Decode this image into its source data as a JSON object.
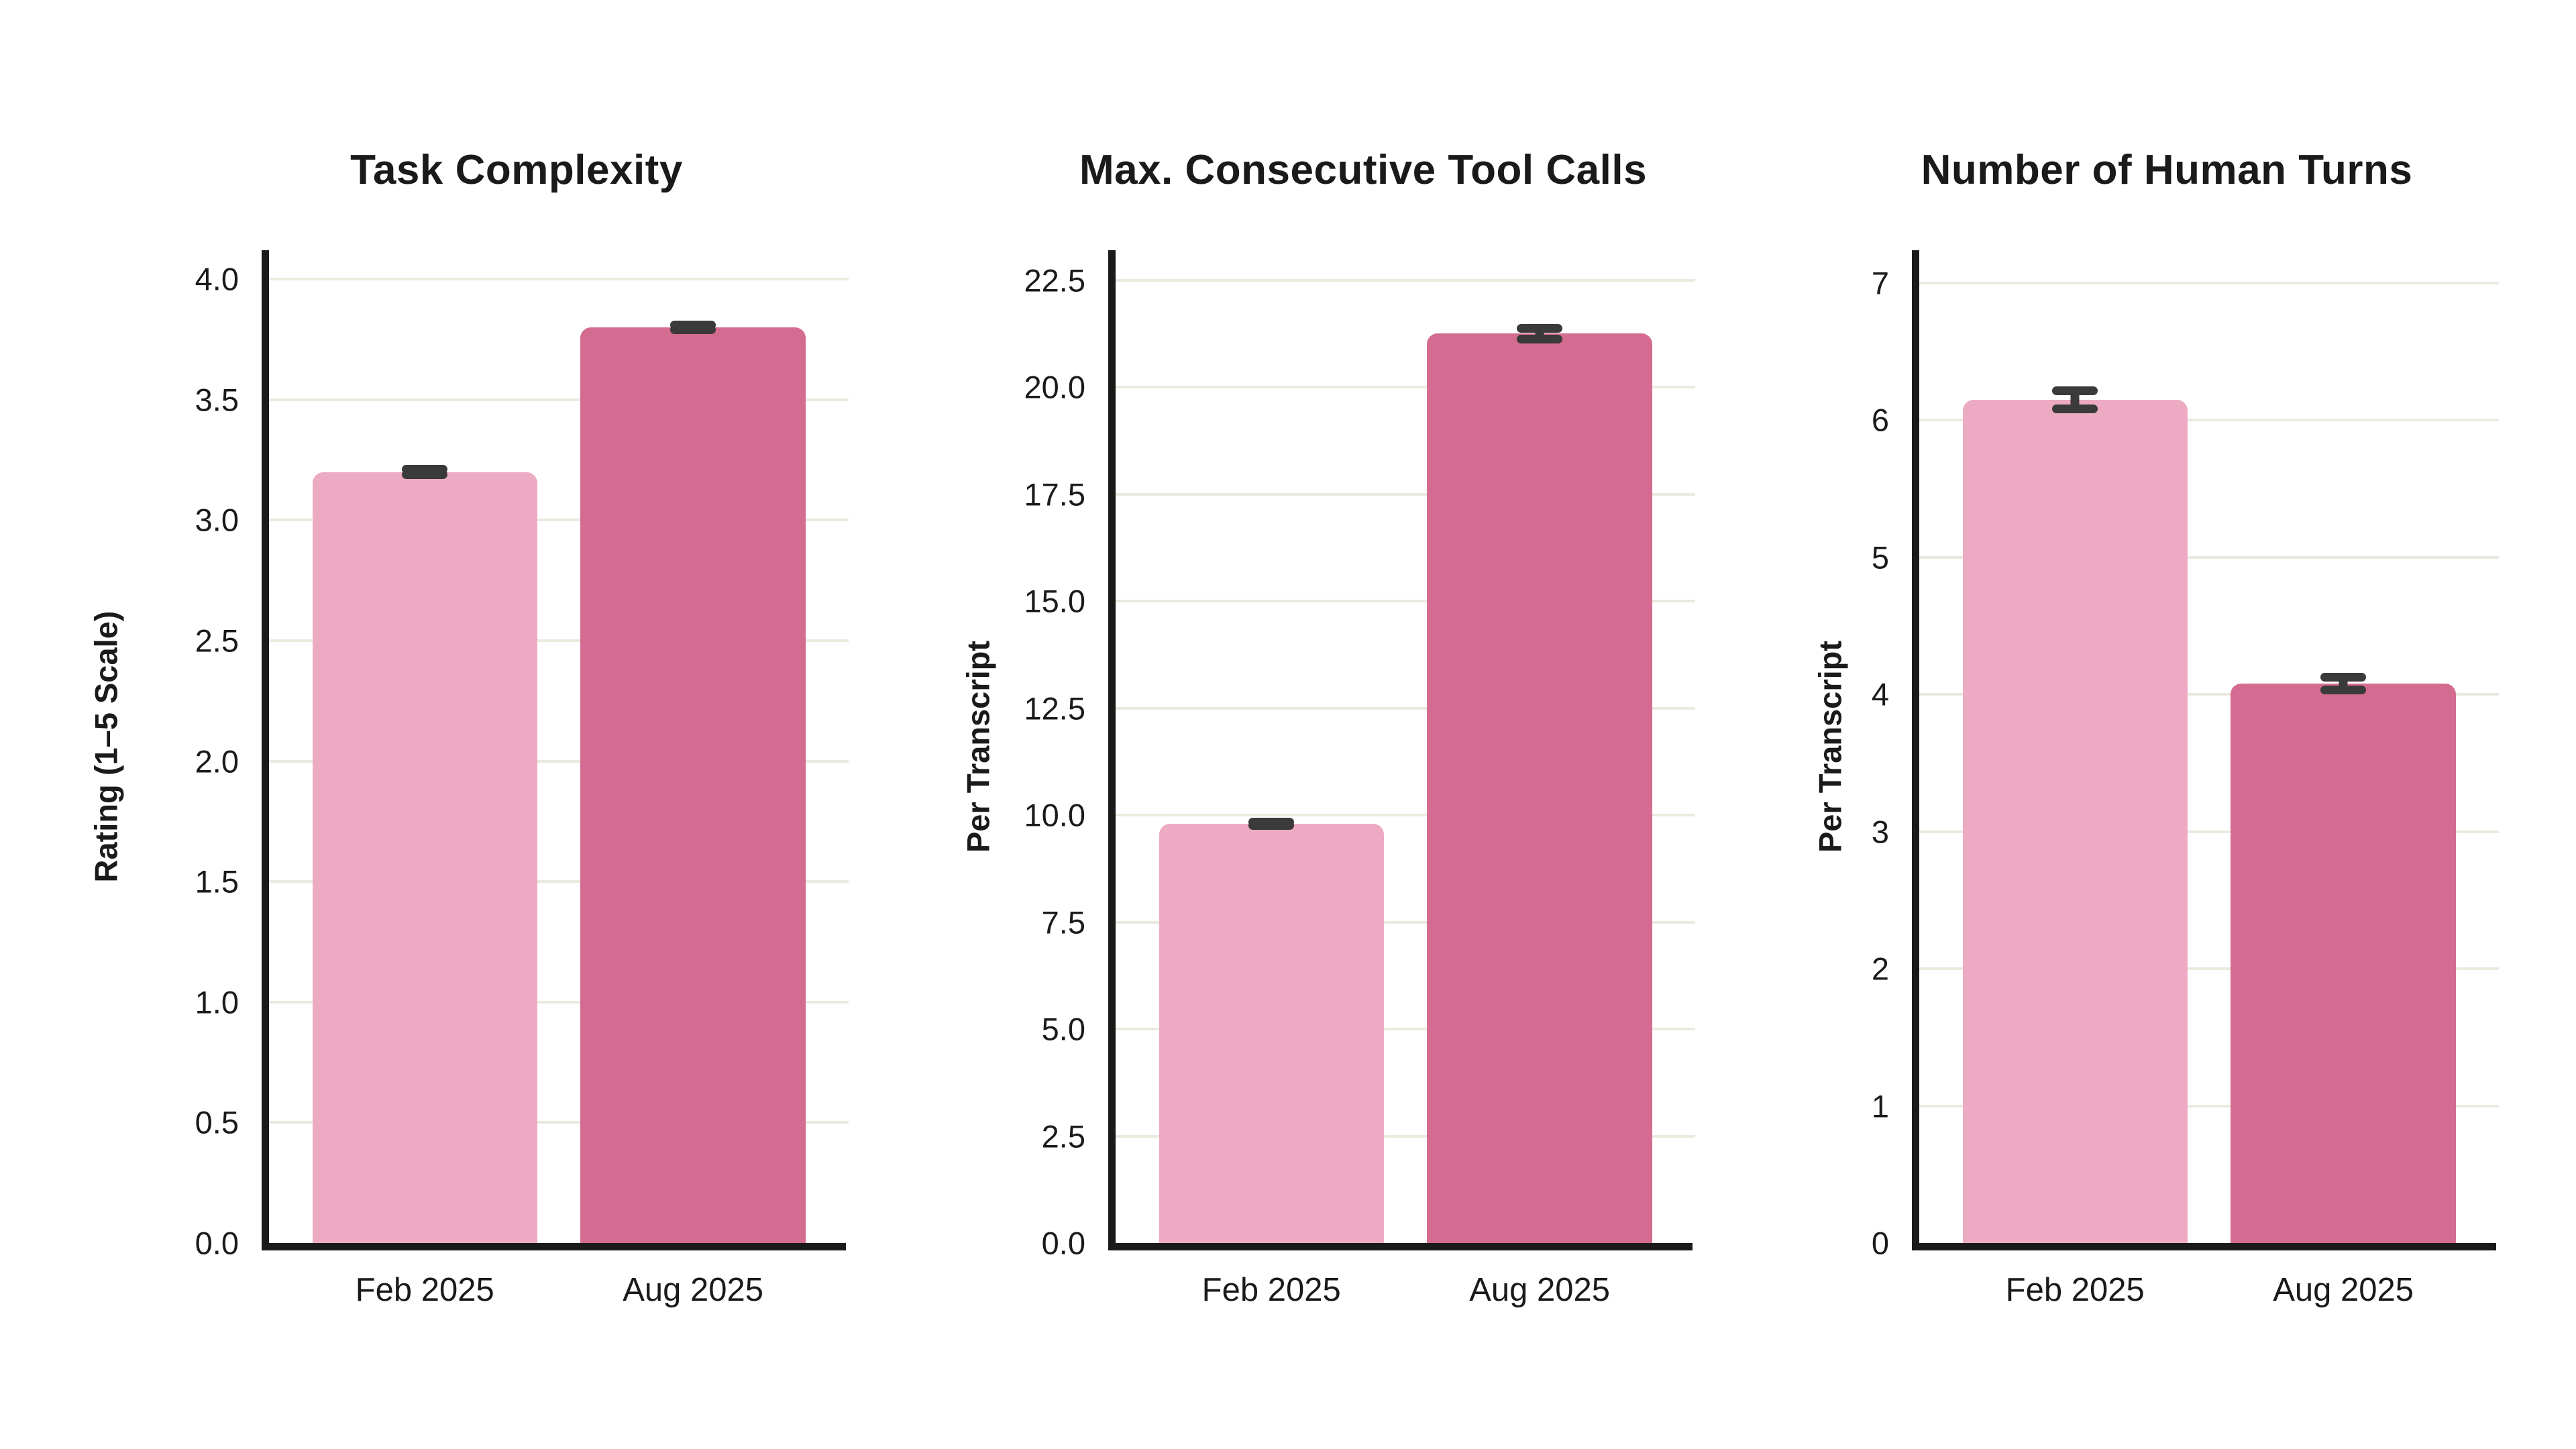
{
  "figure": {
    "background": "#ffffff",
    "colors": {
      "bar_feb": "#EDABC3",
      "bar_aug": "#D46B90",
      "error_bar": "#3A3A3A",
      "gridline": "#ECE9DF",
      "axis": "#1A1A1A",
      "text": "#1A1A1A"
    }
  },
  "chart_data": [
    {
      "type": "bar",
      "title": "Task Complexity",
      "xlabel": "",
      "ylabel": "Rating (1–5 Scale)",
      "categories": [
        "Feb 2025",
        "Aug 2025"
      ],
      "values": [
        3.2,
        3.8
      ],
      "errors": [
        0.012,
        0.01
      ],
      "bar_colors": [
        "#EDABC3",
        "#D46B90"
      ],
      "yticks": {
        "values": [
          0.0,
          0.5,
          1.0,
          1.5,
          2.0,
          2.5,
          3.0,
          3.5,
          4.0
        ],
        "labels": [
          "0.0",
          "0.5",
          "1.0",
          "1.5",
          "2.0",
          "2.5",
          "3.0",
          "3.5",
          "4.0"
        ]
      },
      "ylim": [
        0,
        4.12
      ],
      "grid": "horizontal",
      "legend": "none"
    },
    {
      "type": "bar",
      "title": "Max. Consecutive Tool Calls",
      "xlabel": "",
      "ylabel": "Per Transcript",
      "categories": [
        "Feb 2025",
        "Aug 2025"
      ],
      "values": [
        9.8,
        21.25
      ],
      "errors": [
        0.04,
        0.12
      ],
      "bar_colors": [
        "#EDABC3",
        "#D46B90"
      ],
      "yticks": {
        "values": [
          0.0,
          2.5,
          5.0,
          7.5,
          10.0,
          12.5,
          15.0,
          17.5,
          20.0,
          22.5
        ],
        "labels": [
          "0.0",
          "2.5",
          "5.0",
          "7.5",
          "10.0",
          "12.5",
          "15.0",
          "17.5",
          "20.0",
          "22.5"
        ]
      },
      "ylim": [
        0,
        23.2
      ],
      "grid": "horizontal",
      "legend": "none"
    },
    {
      "type": "bar",
      "title": "Number of Human Turns",
      "xlabel": "",
      "ylabel": "Per Transcript",
      "categories": [
        "Feb 2025",
        "Aug 2025"
      ],
      "values": [
        6.15,
        4.08
      ],
      "errors": [
        0.065,
        0.045
      ],
      "bar_colors": [
        "#EDABC3",
        "#D46B90"
      ],
      "yticks": {
        "values": [
          0,
          1,
          2,
          3,
          4,
          5,
          6,
          7
        ],
        "labels": [
          "0",
          "1",
          "2",
          "3",
          "4",
          "5",
          "6",
          "7"
        ]
      },
      "ylim": [
        0,
        7.24
      ],
      "grid": "horizontal",
      "legend": "none"
    }
  ]
}
